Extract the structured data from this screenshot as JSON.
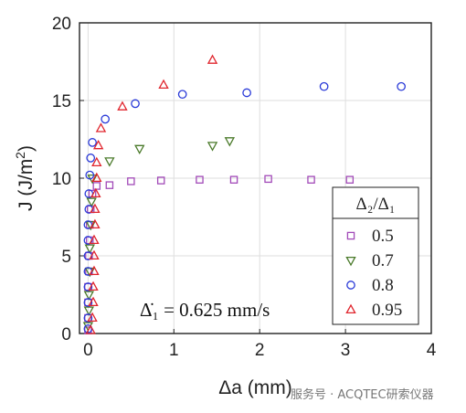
{
  "chart_data": {
    "type": "scatter",
    "xlabel": "Δa (mm)",
    "ylabel_main": "J (J/m",
    "ylabel_sup": "2",
    "ylabel_close": ")",
    "xlim": [
      -0.1,
      4
    ],
    "ylim": [
      0,
      20
    ],
    "xticks": [
      "0",
      "1",
      "2",
      "3",
      "4"
    ],
    "yticks": [
      "0",
      "5",
      "10",
      "15",
      "20"
    ],
    "grid": true,
    "legend_position": "right, lower-middle",
    "legend_title": "Δ₂/Δ₁",
    "annotation": "Δ̇₁ = 0.625 mm/s",
    "series": [
      {
        "name": "0.5",
        "marker": "square",
        "color": "#a24ab8",
        "x": [
          0.0,
          0.0,
          0.0,
          0.0,
          0.01,
          0.01,
          0.02,
          0.02,
          0.03,
          0.05,
          0.1,
          0.25,
          0.5,
          0.85,
          1.3,
          1.7,
          2.1,
          2.6,
          3.05
        ],
        "y": [
          0.2,
          1.0,
          2.0,
          3.0,
          4.0,
          5.0,
          6.0,
          7.0,
          8.0,
          9.0,
          9.5,
          9.55,
          9.8,
          9.85,
          9.9,
          9.9,
          9.95,
          9.9,
          9.9
        ]
      },
      {
        "name": "0.7",
        "marker": "triangle-down",
        "color": "#4a7a2a",
        "x": [
          0.0,
          0.01,
          0.01,
          0.02,
          0.02,
          0.03,
          0.04,
          0.05,
          0.25,
          0.6,
          1.45,
          1.65
        ],
        "y": [
          0.5,
          1.5,
          2.5,
          4.0,
          5.5,
          7.0,
          8.5,
          10.0,
          11.1,
          11.9,
          12.1,
          12.4
        ]
      },
      {
        "name": "0.8",
        "marker": "circle",
        "color": "#2a3ad8",
        "x": [
          0.0,
          0.0,
          0.0,
          0.0,
          0.0,
          0.0,
          0.0,
          0.0,
          0.01,
          0.01,
          0.02,
          0.03,
          0.05,
          0.2,
          0.55,
          1.1,
          1.85,
          2.75,
          3.65
        ],
        "y": [
          0.3,
          1.0,
          2.0,
          3.0,
          4.0,
          5.0,
          6.0,
          7.0,
          8.0,
          9.0,
          10.2,
          11.3,
          12.3,
          13.8,
          14.8,
          15.4,
          15.5,
          15.9,
          15.9
        ]
      },
      {
        "name": "0.95",
        "marker": "triangle-up",
        "color": "#e0242c",
        "x": [
          0.03,
          0.05,
          0.06,
          0.06,
          0.07,
          0.07,
          0.07,
          0.08,
          0.08,
          0.09,
          0.1,
          0.1,
          0.12,
          0.15,
          0.4,
          0.88,
          1.45
        ],
        "y": [
          0.2,
          1.0,
          2.0,
          3.0,
          4.0,
          5.0,
          6.0,
          7.0,
          8.0,
          9.0,
          10.0,
          11.0,
          12.1,
          13.2,
          14.6,
          16.0,
          17.6
        ]
      }
    ]
  },
  "watermark": "服务号 · ACQTEC研索仪器"
}
